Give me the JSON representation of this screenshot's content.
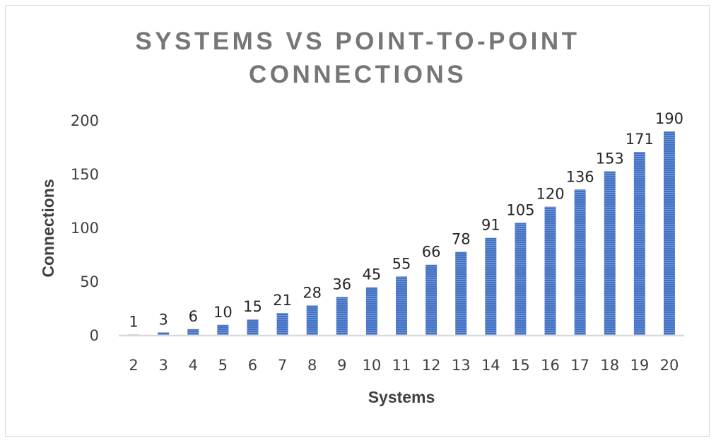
{
  "chart_data": {
    "type": "bar",
    "title_lines": [
      "SYSTEMS VS POINT-TO-POINT",
      "CONNECTIONS"
    ],
    "xlabel": "Systems",
    "ylabel": "Connections",
    "categories": [
      "2",
      "3",
      "4",
      "5",
      "6",
      "7",
      "8",
      "9",
      "10",
      "11",
      "12",
      "13",
      "14",
      "15",
      "16",
      "17",
      "18",
      "19",
      "20"
    ],
    "values": [
      1,
      3,
      6,
      10,
      15,
      21,
      28,
      36,
      45,
      55,
      66,
      78,
      91,
      105,
      120,
      136,
      153,
      171,
      190
    ],
    "ylim": [
      0,
      200
    ],
    "yticks": [
      0,
      50,
      100,
      150,
      200
    ],
    "grid": false,
    "legend": "none",
    "data_labels": true,
    "bar_color": "#4472c4"
  }
}
